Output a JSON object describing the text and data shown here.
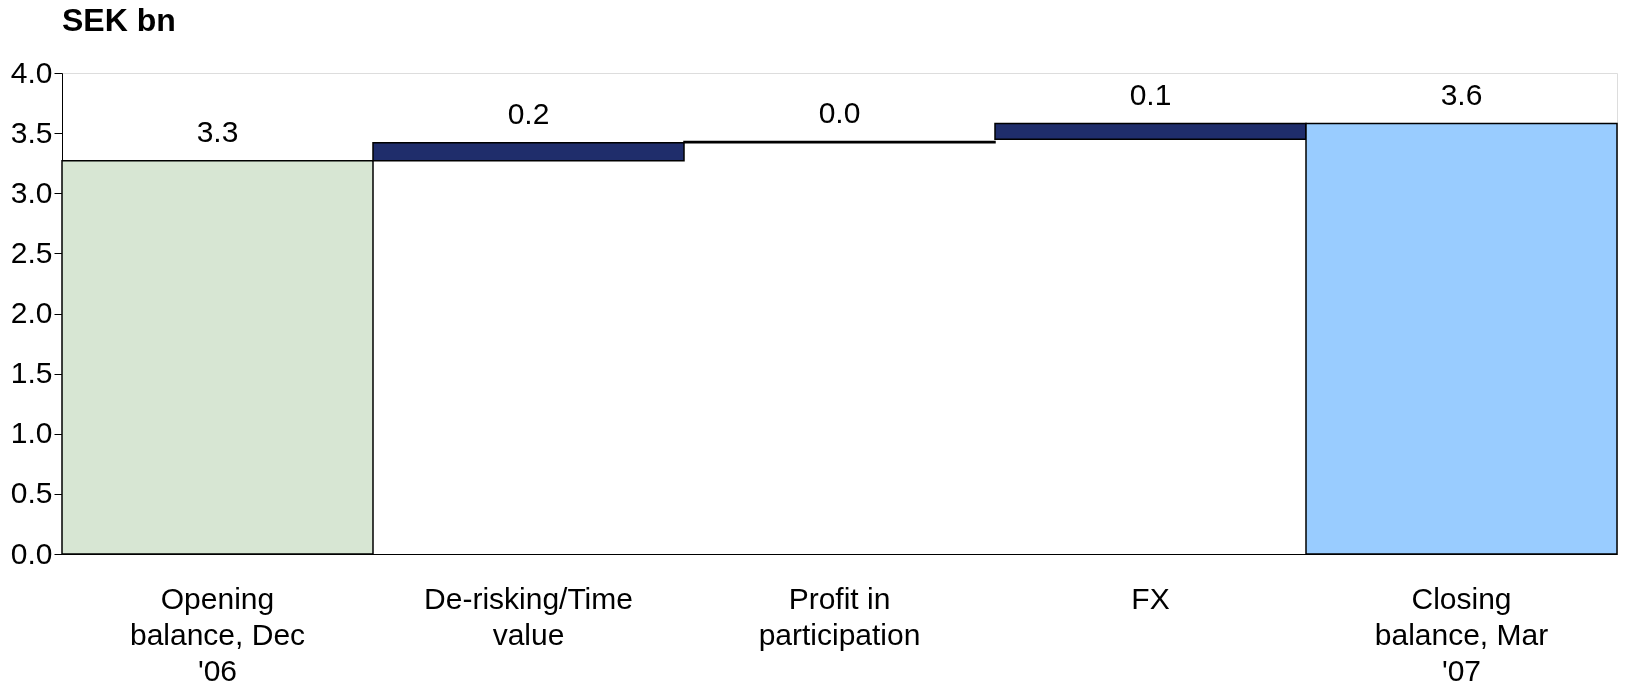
{
  "chart_data": {
    "type": "bar",
    "title": "SEK bn",
    "categories": [
      "Opening balance, Dec '06",
      "De-risking/Time value",
      "Profit in participation",
      "FX",
      "Closing balance, Mar '07"
    ],
    "values": [
      3.27,
      0.15,
      0.01,
      0.13,
      3.58
    ],
    "base": [
      0,
      3.27,
      3.42,
      3.45,
      0
    ],
    "colors": [
      "#d7e6d3",
      "#1f2d6b",
      "#1f2d6b",
      "#1f2d6b",
      "#99ccff"
    ],
    "value_labels": [
      "3.3",
      "0.2",
      "0.0",
      "0.1",
      "3.6"
    ],
    "ylim": [
      0,
      4
    ],
    "yticks": [
      {
        "value": 0,
        "label": "0.0"
      },
      {
        "value": 0.5,
        "label": "0.5"
      },
      {
        "value": 1,
        "label": "1.0"
      },
      {
        "value": 1.5,
        "label": "1.5"
      },
      {
        "value": 2,
        "label": "2.0"
      },
      {
        "value": 2.5,
        "label": "2.5"
      },
      {
        "value": 3,
        "label": "3.0"
      },
      {
        "value": 3.5,
        "label": "3.5"
      },
      {
        "value": 4,
        "label": "4.0"
      }
    ],
    "grid": false
  }
}
